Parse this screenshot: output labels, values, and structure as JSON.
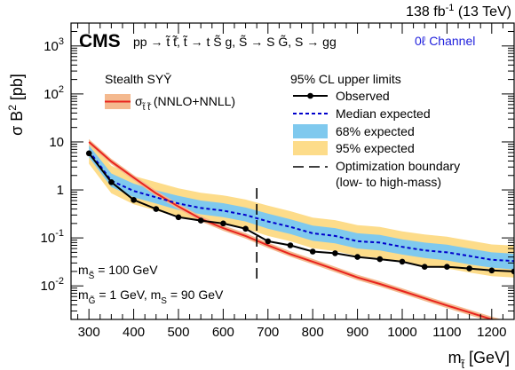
{
  "chart_data": {
    "type": "line",
    "lumi_label": "138 fb",
    "lumi_sup": "-1",
    "lumi_energy": " (13 TeV)",
    "cms_label": "CMS",
    "process_label": "pp → t̃ t̃̄, t̃ → t S̃ g, S̃ → S G̃, S → gg",
    "channel_label": "0ℓ Channel",
    "xlabel_main": "m",
    "xlabel_sub": "t̃",
    "xlabel_unit": " [GeV]",
    "ylabel": "σ B",
    "ylabel_sup": "2",
    "ylabel_unit": " [pb]",
    "xlim": [
      260,
      1250
    ],
    "ylim": [
      0.002,
      3000
    ],
    "log_y": true,
    "x_ticks": [
      300,
      400,
      500,
      600,
      700,
      800,
      900,
      1000,
      1100,
      1200
    ],
    "y_ticks": [
      {
        "value": 0.01,
        "base": "10",
        "exp": "-2"
      },
      {
        "value": 0.1,
        "base": "10",
        "exp": "-1"
      },
      {
        "value": 1,
        "base": "1",
        "exp": ""
      },
      {
        "value": 10,
        "base": "10",
        "exp": ""
      },
      {
        "value": 100,
        "base": "10",
        "exp": "2"
      },
      {
        "value": 1000,
        "base": "10",
        "exp": "3"
      }
    ],
    "signal_legend": {
      "title": "Stealth SYȲ",
      "label_main": "σ",
      "label_sub": "t̃ t̃̄",
      "label_rest": " (NNLO+NNLL)"
    },
    "limits_legend": {
      "title": "95% CL upper limits",
      "entries": [
        "Observed",
        "Median expected",
        "68% expected",
        "95% expected",
        "Optimization boundary",
        "(low- to high-mass)"
      ]
    },
    "mass_notes": [
      {
        "parts": [
          "m",
          "S̃",
          " = 100 GeV"
        ]
      },
      {
        "parts": [
          "m",
          "G̃",
          " = 1 GeV, m",
          "S",
          " = 90 GeV"
        ]
      }
    ],
    "colors": {
      "observed": "#000000",
      "expected": "#0000cc",
      "band68": "#7fc9ee",
      "band95": "#fddc8a",
      "theory": "#e8231e",
      "theory_band": "#f4b98f",
      "channel": "#2222dd"
    },
    "boundary_x": 675,
    "x": [
      300,
      350,
      400,
      450,
      500,
      550,
      600,
      650,
      700,
      750,
      800,
      850,
      900,
      950,
      1000,
      1050,
      1100,
      1150,
      1200,
      1250
    ],
    "observed": [
      5.8,
      1.45,
      0.62,
      0.4,
      0.27,
      0.23,
      0.2,
      0.155,
      0.085,
      0.07,
      0.052,
      0.048,
      0.04,
      0.036,
      0.032,
      0.025,
      0.025,
      0.023,
      0.021,
      0.02
    ],
    "expected": [
      6.5,
      1.55,
      0.95,
      0.7,
      0.52,
      0.42,
      0.37,
      0.3,
      0.22,
      0.17,
      0.125,
      0.11,
      0.085,
      0.08,
      0.065,
      0.055,
      0.05,
      0.042,
      0.035,
      0.033
    ],
    "band68_low": [
      4.8,
      1.15,
      0.7,
      0.52,
      0.38,
      0.31,
      0.27,
      0.22,
      0.155,
      0.12,
      0.087,
      0.077,
      0.06,
      0.055,
      0.045,
      0.038,
      0.034,
      0.028,
      0.024,
      0.022
    ],
    "band68_high": [
      8.5,
      2.2,
      1.35,
      0.98,
      0.75,
      0.6,
      0.53,
      0.43,
      0.32,
      0.245,
      0.18,
      0.16,
      0.125,
      0.115,
      0.093,
      0.08,
      0.072,
      0.06,
      0.05,
      0.047
    ],
    "band95_low": [
      3.5,
      0.85,
      0.5,
      0.37,
      0.27,
      0.22,
      0.19,
      0.155,
      0.11,
      0.085,
      0.061,
      0.053,
      0.042,
      0.038,
      0.031,
      0.026,
      0.023,
      0.019,
      0.016,
      0.015
    ],
    "band95_high": [
      11.5,
      3.2,
      1.95,
      1.45,
      1.08,
      0.87,
      0.77,
      0.63,
      0.47,
      0.36,
      0.265,
      0.235,
      0.185,
      0.17,
      0.137,
      0.118,
      0.106,
      0.088,
      0.073,
      0.069
    ],
    "theory_x": [
      300,
      350,
      400,
      450,
      500,
      550,
      600,
      650,
      700,
      750,
      800,
      850,
      900,
      950,
      1000,
      1050,
      1100,
      1150,
      1200,
      1250
    ],
    "theory": [
      10.0,
      3.9,
      1.8,
      0.85,
      0.45,
      0.25,
      0.16,
      0.11,
      0.07,
      0.046,
      0.032,
      0.022,
      0.015,
      0.011,
      0.0078,
      0.0055,
      0.0039,
      0.0028,
      0.002,
      0.0015
    ]
  }
}
